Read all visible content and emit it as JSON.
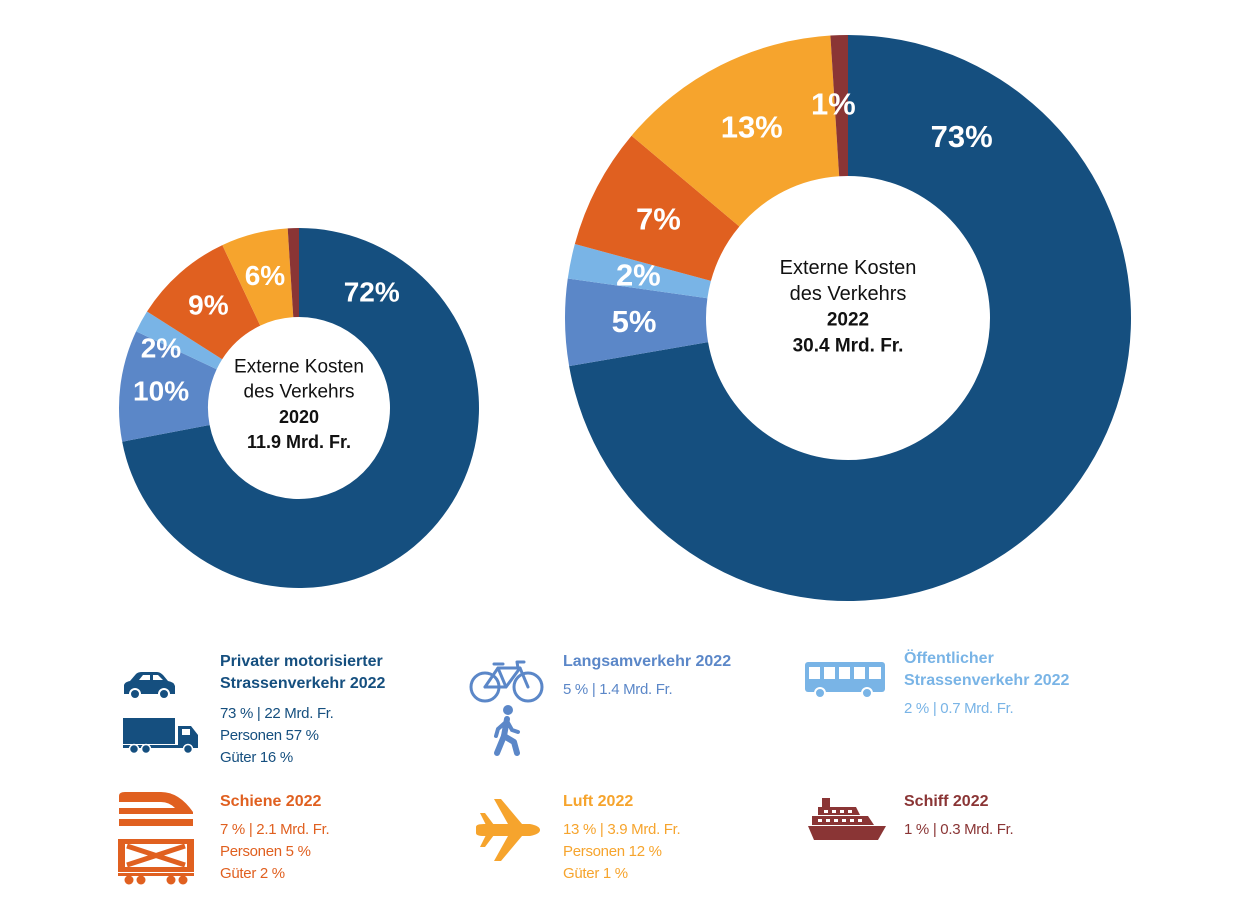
{
  "colors": {
    "private": "#154f7f",
    "slow": "#5b87c8",
    "public": "#79b4e6",
    "rail": "#e06020",
    "air": "#f6a42d",
    "ship": "#8a3535"
  },
  "chart_data": [
    {
      "type": "pie",
      "donut": true,
      "center_lines": [
        "Externe Kosten",
        "des Verkehrs",
        "2020",
        "11.9 Mrd. Fr."
      ],
      "slices": [
        {
          "key": "private",
          "value": 72,
          "label": "72%"
        },
        {
          "key": "slow",
          "value": 10,
          "label": "10%"
        },
        {
          "key": "public",
          "value": 2,
          "label": "2%"
        },
        {
          "key": "rail",
          "value": 9,
          "label": "9%"
        },
        {
          "key": "air",
          "value": 6,
          "label": "6%"
        },
        {
          "key": "ship",
          "value": 1,
          "label": ""
        }
      ]
    },
    {
      "type": "pie",
      "donut": true,
      "center_lines": [
        "Externe Kosten",
        "des Verkehrs",
        "2022",
        "30.4 Mrd. Fr."
      ],
      "slices": [
        {
          "key": "private",
          "value": 73,
          "label": "73%"
        },
        {
          "key": "slow",
          "value": 5,
          "label": "5%"
        },
        {
          "key": "public",
          "value": 2,
          "label": "2%"
        },
        {
          "key": "rail",
          "value": 7,
          "label": "7%"
        },
        {
          "key": "air",
          "value": 13,
          "label": "13%"
        },
        {
          "key": "ship",
          "value": 1,
          "label": "1%"
        }
      ]
    }
  ],
  "legend": {
    "private": {
      "title1": "Privater motorisierter",
      "title2": "Strassenverkehr 2022",
      "line1": "73 % | 22 Mrd. Fr.",
      "line2": "Personen 57 %",
      "line3": "Güter 16 %",
      "icon1": "car-icon",
      "icon2": "truck-icon"
    },
    "slow": {
      "title1": "Langsamverkehr 2022",
      "line1": "5 % | 1.4 Mrd. Fr.",
      "icon1": "bicycle-icon",
      "icon2": "pedestrian-icon"
    },
    "public": {
      "title1": "Öffentlicher",
      "title2": "Strassenverkehr 2022",
      "line1": "2 % | 0.7 Mrd. Fr.",
      "icon1": "bus-icon"
    },
    "rail": {
      "title1": "Schiene 2022",
      "line1": "7 % | 2.1 Mrd. Fr.",
      "line2": "Personen 5 %",
      "line3": "Güter 2 %",
      "icon1": "train-icon",
      "icon2": "freight-wagon-icon"
    },
    "air": {
      "title1": "Luft 2022",
      "line1": "13 % | 3.9 Mrd. Fr.",
      "line2": "Personen 12 %",
      "line3": "Güter 1 %",
      "icon1": "airplane-icon"
    },
    "ship": {
      "title1": "Schiff 2022",
      "line1": "1 % | 0.3 Mrd. Fr.",
      "icon1": "ship-icon"
    }
  }
}
